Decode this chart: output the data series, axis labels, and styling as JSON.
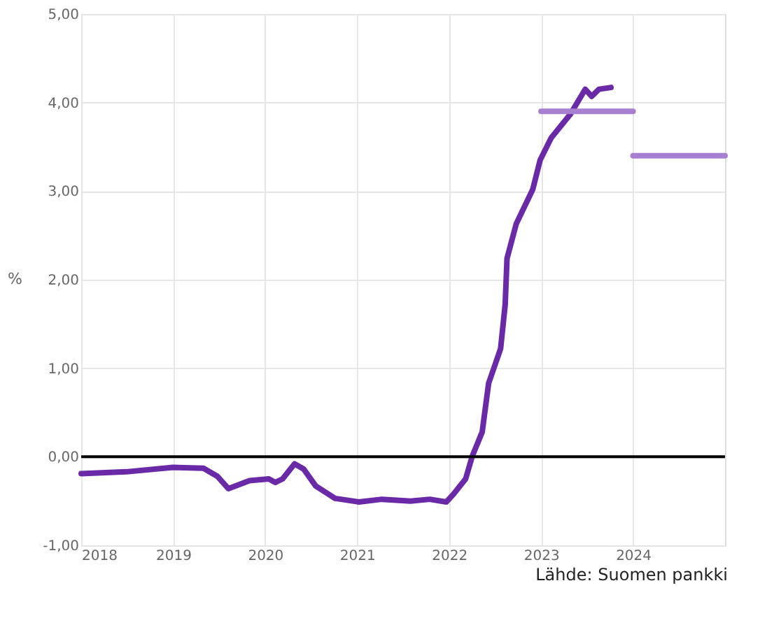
{
  "chart_data": {
    "type": "line",
    "ylabel": "%",
    "annotations": [
      "Lähde: Suomen pankki"
    ],
    "xlim": [
      2018,
      2025
    ],
    "xticks": [
      2018,
      2019,
      2020,
      2021,
      2022,
      2023,
      2024
    ],
    "ylim": [
      -1,
      5
    ],
    "yticks": [
      {
        "value": -1,
        "label": "-1,00"
      },
      {
        "value": 0,
        "label": "0,00"
      },
      {
        "value": 1,
        "label": "1,00"
      },
      {
        "value": 2,
        "label": "2,00"
      },
      {
        "value": 3,
        "label": "3,00"
      },
      {
        "value": 4,
        "label": "4,00"
      },
      {
        "value": 5,
        "label": "5,00"
      }
    ],
    "grid": true,
    "line_style": "solid",
    "ref_lines": [
      {
        "axis": "y",
        "value": 0,
        "color": "#000000"
      }
    ],
    "series": [
      {
        "color": "#6a2aa8",
        "x": [
          2018.0,
          2018.49,
          2019.0,
          2019.33,
          2019.48,
          2019.6,
          2019.83,
          2020.04,
          2020.11,
          2020.19,
          2020.32,
          2020.42,
          2020.55,
          2020.76,
          2021.02,
          2021.27,
          2021.58,
          2021.79,
          2021.97,
          2022.05,
          2022.18,
          2022.25,
          2022.36,
          2022.43,
          2022.56,
          2022.61,
          2022.63,
          2022.73,
          2022.91,
          2022.99,
          2023.11,
          2023.32,
          2023.48,
          2023.55,
          2023.63,
          2023.76
        ],
        "values": [
          -0.19,
          -0.17,
          -0.12,
          -0.13,
          -0.22,
          -0.36,
          -0.27,
          -0.25,
          -0.29,
          -0.25,
          -0.08,
          -0.14,
          -0.33,
          -0.47,
          -0.51,
          -0.48,
          -0.5,
          -0.48,
          -0.51,
          -0.42,
          -0.25,
          0.0,
          0.28,
          0.83,
          1.22,
          1.72,
          2.24,
          2.63,
          3.02,
          3.35,
          3.6,
          3.87,
          4.15,
          4.07,
          4.15,
          4.17
        ]
      },
      {
        "color": "#a880d0",
        "x": [
          2023,
          2024
        ],
        "values": [
          3.9,
          3.9
        ]
      },
      {
        "color": "#a880d0",
        "x": [
          2024,
          2025
        ],
        "values": [
          3.4,
          3.4
        ]
      }
    ]
  }
}
